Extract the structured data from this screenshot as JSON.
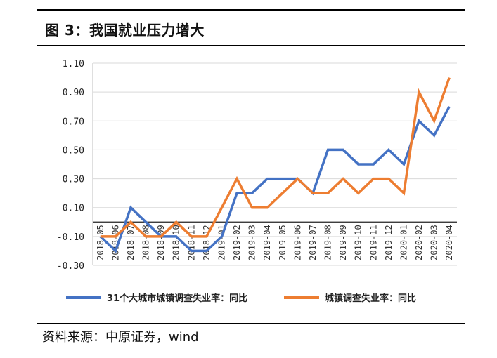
{
  "figure": {
    "title": "图 3：我国就业压力增大",
    "source": "资料来源：中原证券，wind"
  },
  "chart_data": {
    "type": "line",
    "categories": [
      "2018-05",
      "2018-06",
      "2018-07",
      "2018-08",
      "2018-09",
      "2018-10",
      "2018-11",
      "2018-12",
      "2019-01",
      "2019-02",
      "2019-03",
      "2019-04",
      "2019-05",
      "2019-06",
      "2019-07",
      "2019-08",
      "2019-09",
      "2019-10",
      "2019-11",
      "2019-12",
      "2020-01",
      "2020-02",
      "2020-03",
      "2020-04"
    ],
    "series": [
      {
        "name": "31个大城市城镇调查失业率：同比",
        "color": "#4472C4",
        "values": [
          -0.1,
          -0.2,
          0.1,
          0.0,
          -0.1,
          -0.1,
          -0.2,
          -0.2,
          -0.1,
          0.2,
          0.2,
          0.3,
          0.3,
          0.3,
          0.2,
          0.5,
          0.5,
          0.4,
          0.4,
          0.5,
          0.4,
          0.7,
          0.6,
          0.8
        ]
      },
      {
        "name": "城镇调查失业率：同比",
        "color": "#ED7D31",
        "values": [
          -0.1,
          -0.1,
          0.0,
          -0.1,
          -0.1,
          0.0,
          -0.1,
          -0.1,
          0.1,
          0.3,
          0.1,
          0.1,
          0.2,
          0.3,
          0.2,
          0.2,
          0.3,
          0.2,
          0.3,
          0.3,
          0.2,
          0.9,
          0.7,
          1.0
        ]
      }
    ],
    "yticks": [
      "1.10",
      "0.90",
      "0.70",
      "0.50",
      "0.30",
      "0.10",
      "-0.10",
      "-0.30"
    ],
    "ylim": [
      -0.3,
      1.1
    ],
    "grid": "horizontal",
    "legend": "bottom"
  }
}
